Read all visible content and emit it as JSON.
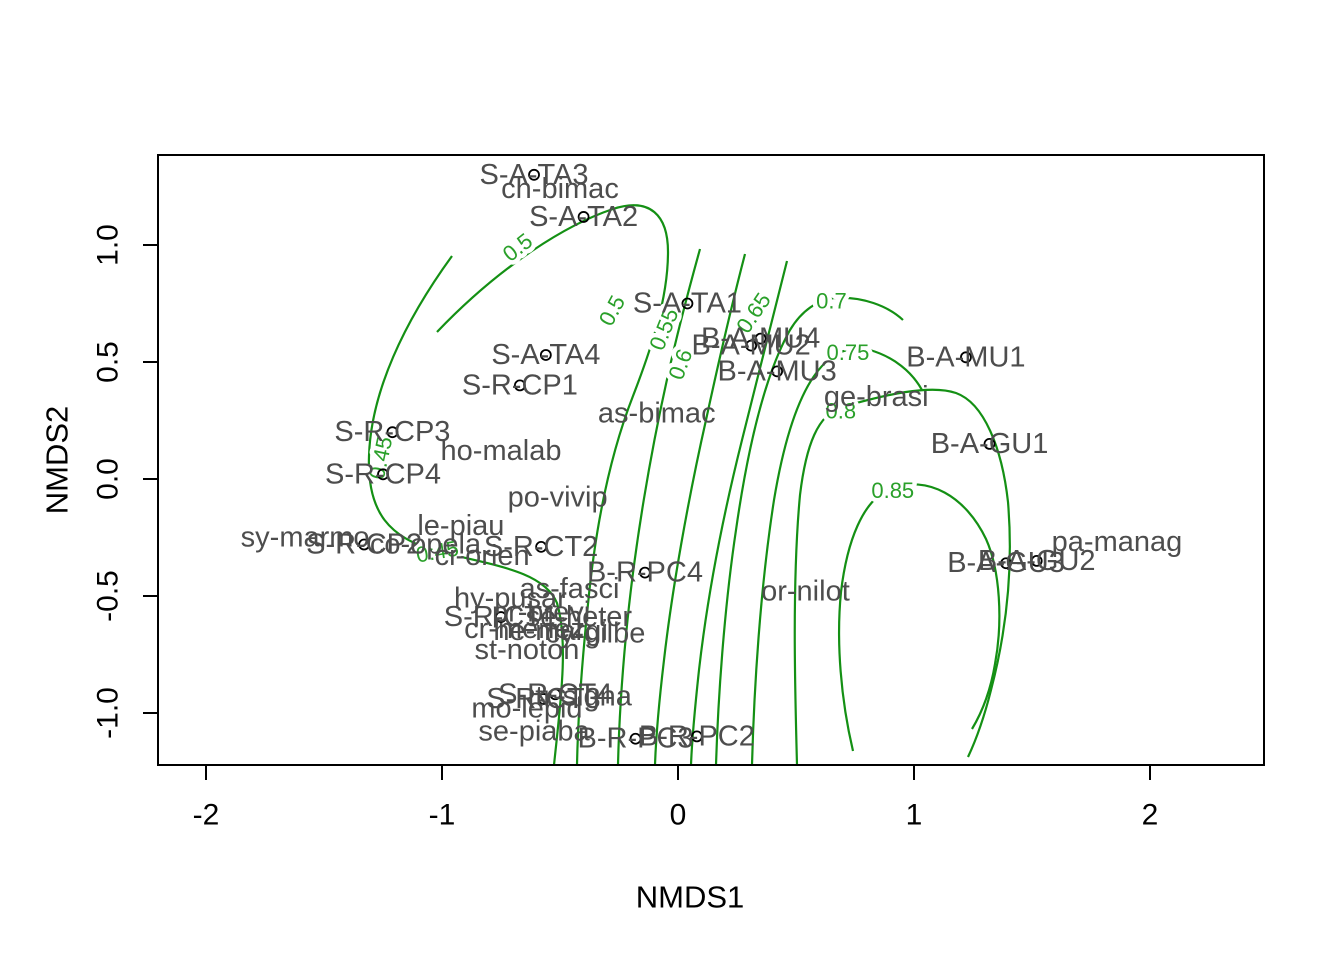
{
  "figure": {
    "background": "#ffffff"
  },
  "axes": {
    "x": {
      "title": "NMDS1",
      "ticks": [
        "-2",
        "-1",
        "0",
        "1",
        "2"
      ],
      "tick_values": [
        -2,
        -1,
        0,
        1,
        2
      ]
    },
    "y": {
      "title": "NMDS2",
      "ticks": [
        "1.0",
        "0.5",
        "0.0",
        "-0.5",
        "-1.0"
      ],
      "tick_values": [
        1.0,
        0.5,
        0.0,
        -0.5,
        -1.0
      ]
    }
  },
  "colors": {
    "contour_line": "#149014",
    "contour_label": "#2aa02a",
    "text_label": "#4d4d4d",
    "marker": "#000000"
  },
  "chart_data": {
    "type": "scatter",
    "title": "",
    "xlabel": "NMDS1",
    "ylabel": "NMDS2",
    "xlim": [
      -2.21,
      2.48
    ],
    "ylim": [
      -1.39,
      1.39
    ],
    "grid": false,
    "legend": "none",
    "sites": [
      {
        "label": "S-A-TA3",
        "x": -0.61,
        "y": 1.3
      },
      {
        "label": "S-A-TA2",
        "x": -0.4,
        "y": 1.12
      },
      {
        "label": "S-A-TA1",
        "x": 0.04,
        "y": 0.75
      },
      {
        "label": "S-A-TA4",
        "x": -0.56,
        "y": 0.53
      },
      {
        "label": "S-R-CP1",
        "x": -0.67,
        "y": 0.4
      },
      {
        "label": "B-A-MU4",
        "x": 0.35,
        "y": 0.6
      },
      {
        "label": "B-A-MU2",
        "x": 0.31,
        "y": 0.57
      },
      {
        "label": "B-A-MU3",
        "x": 0.42,
        "y": 0.46
      },
      {
        "label": "B-A-MU1",
        "x": 1.22,
        "y": 0.52
      },
      {
        "label": "B-A-GU1",
        "x": 1.32,
        "y": 0.15
      },
      {
        "label": "S-R-CP3",
        "x": -1.21,
        "y": 0.2
      },
      {
        "label": "S-R-CP4",
        "x": -1.25,
        "y": 0.02
      },
      {
        "label": "S-R-CP2",
        "x": -1.33,
        "y": -0.28
      },
      {
        "label": "S-R-CT2",
        "x": -0.58,
        "y": -0.29
      },
      {
        "label": "B-R-PC4",
        "x": -0.14,
        "y": -0.4
      },
      {
        "label": "B-A-GU3",
        "x": 1.39,
        "y": -0.36
      },
      {
        "label": "B-A-GU2",
        "x": 1.52,
        "y": -0.35
      },
      {
        "label": "S-R-CT1",
        "x": -0.75,
        "y": -0.59
      },
      {
        "label": "S-R-CT3",
        "x": -0.57,
        "y": -0.94
      },
      {
        "label": "S-R-CT4",
        "x": -0.52,
        "y": -0.92
      },
      {
        "label": "B-R-PC3",
        "x": -0.18,
        "y": -1.11
      },
      {
        "label": "B-R-PC2",
        "x": 0.08,
        "y": -1.1
      }
    ],
    "species": [
      {
        "label": "ch-bimac",
        "x": -0.5,
        "y": 1.24
      },
      {
        "label": "as-bimac",
        "x": -0.09,
        "y": 0.28
      },
      {
        "label": "ho-malab",
        "x": -0.75,
        "y": 0.12
      },
      {
        "label": "po-vivip",
        "x": -0.51,
        "y": -0.08
      },
      {
        "label": "sy-marmo",
        "x": -1.58,
        "y": -0.25
      },
      {
        "label": "le-piau",
        "x": -0.92,
        "y": -0.2
      },
      {
        "label": "co-opela",
        "x": -1.07,
        "y": -0.28
      },
      {
        "label": "ci-orien",
        "x": -0.83,
        "y": -0.33
      },
      {
        "label": "as-fasci",
        "x": -0.46,
        "y": -0.47
      },
      {
        "label": "hy-pusar",
        "x": -0.71,
        "y": -0.51
      },
      {
        "label": "pr-brevi",
        "x": -0.58,
        "y": -0.57
      },
      {
        "label": "se-heter",
        "x": -0.42,
        "y": -0.59
      },
      {
        "label": "cr-menez",
        "x": -0.65,
        "y": -0.64
      },
      {
        "label": "he-margi",
        "x": -0.54,
        "y": -0.65
      },
      {
        "label": "cy-gilbe",
        "x": -0.35,
        "y": -0.66
      },
      {
        "label": "st-noton",
        "x": -0.64,
        "y": -0.73
      },
      {
        "label": "tr-signa",
        "x": -0.4,
        "y": -0.93
      },
      {
        "label": "mo-lepid",
        "x": -0.64,
        "y": -0.98
      },
      {
        "label": "se-piaba",
        "x": -0.61,
        "y": -1.08
      },
      {
        "label": "or-nilot",
        "x": 0.54,
        "y": -0.48
      },
      {
        "label": "ge-brasi",
        "x": 0.84,
        "y": 0.35
      },
      {
        "label": "pa-manag",
        "x": 1.86,
        "y": -0.27
      }
    ],
    "contours": {
      "levels": [
        0.45,
        0.5,
        0.55,
        0.6,
        0.65,
        0.7,
        0.75,
        0.8,
        0.85
      ],
      "labels": [
        {
          "text": "0.45",
          "x": -1.26,
          "y": 0.09,
          "rot": -78
        },
        {
          "text": "0.45",
          "x": -1.02,
          "y": -0.31,
          "rot": -10
        },
        {
          "text": "0.5",
          "x": -0.68,
          "y": 0.99,
          "rot": -38
        },
        {
          "text": "0.5",
          "x": -0.28,
          "y": 0.72,
          "rot": -62
        },
        {
          "text": "0.55",
          "x": -0.06,
          "y": 0.64,
          "rot": -68
        },
        {
          "text": "0.6",
          "x": 0.01,
          "y": 0.49,
          "rot": -70
        },
        {
          "text": "0.65",
          "x": 0.32,
          "y": 0.71,
          "rot": -56
        },
        {
          "text": "0.7",
          "x": 0.65,
          "y": 0.76,
          "rot": 0
        },
        {
          "text": "0.75",
          "x": 0.72,
          "y": 0.54,
          "rot": 0
        },
        {
          "text": "0.8",
          "x": 0.69,
          "y": 0.29,
          "rot": 0
        },
        {
          "text": "0.85",
          "x": 0.91,
          "y": -0.05,
          "rot": 0
        }
      ]
    }
  }
}
